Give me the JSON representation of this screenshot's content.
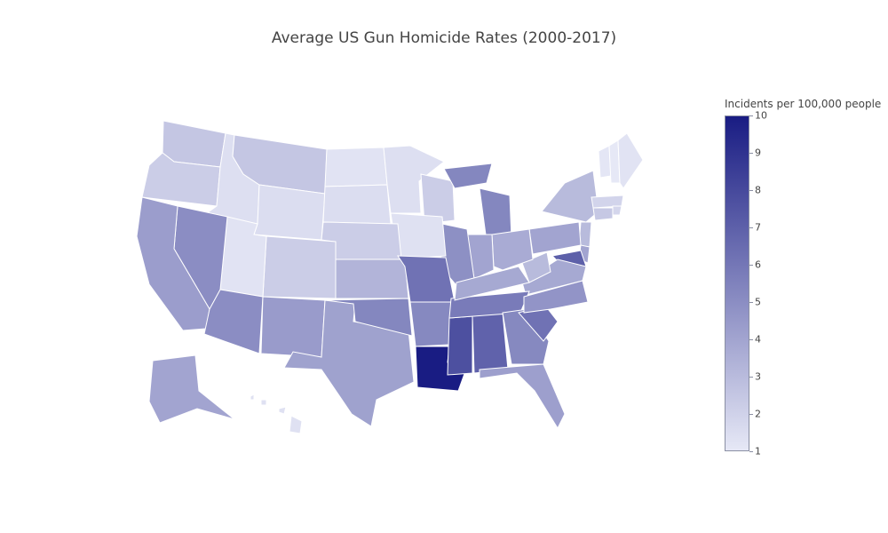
{
  "title": "Average US Gun Homicide Rates (2000-2017)",
  "colorbar": {
    "title": "Incidents per 100,000 people",
    "min": 1,
    "max": 10,
    "ticks": [
      "10",
      "9",
      "8",
      "7",
      "6",
      "5",
      "4",
      "3",
      "2",
      "1"
    ],
    "color_low": "#e6e8f6",
    "color_high": "#191c83"
  },
  "chart_data": {
    "type": "choropleth",
    "scope": "usa",
    "value_label": "Incidents per 100,000 people",
    "states": [
      {
        "code": "WA",
        "value": 2.5
      },
      {
        "code": "OR",
        "value": 2.2
      },
      {
        "code": "ID",
        "value": 1.4
      },
      {
        "code": "MT",
        "value": 2.5
      },
      {
        "code": "WY",
        "value": 1.5
      },
      {
        "code": "ND",
        "value": 1.2
      },
      {
        "code": "SD",
        "value": 1.5
      },
      {
        "code": "MN",
        "value": 1.4
      },
      {
        "code": "WI",
        "value": 2.2
      },
      {
        "code": "MI",
        "value": 5.3
      },
      {
        "code": "NY",
        "value": 3.0
      },
      {
        "code": "VT",
        "value": 1.1
      },
      {
        "code": "NH",
        "value": 1.0
      },
      {
        "code": "ME",
        "value": 1.2
      },
      {
        "code": "MA",
        "value": 1.9
      },
      {
        "code": "RI",
        "value": 1.8
      },
      {
        "code": "CT",
        "value": 2.4
      },
      {
        "code": "NJ",
        "value": 3.0
      },
      {
        "code": "PA",
        "value": 4.0
      },
      {
        "code": "DE",
        "value": 4.0
      },
      {
        "code": "MD",
        "value": 7.0
      },
      {
        "code": "VA",
        "value": 3.8
      },
      {
        "code": "WV",
        "value": 3.0
      },
      {
        "code": "OH",
        "value": 3.7
      },
      {
        "code": "IN",
        "value": 4.0
      },
      {
        "code": "IL",
        "value": 4.9
      },
      {
        "code": "IA",
        "value": 1.3
      },
      {
        "code": "NE",
        "value": 2.2
      },
      {
        "code": "KS",
        "value": 3.3
      },
      {
        "code": "CO",
        "value": 2.2
      },
      {
        "code": "UT",
        "value": 1.2
      },
      {
        "code": "NV",
        "value": 5.0
      },
      {
        "code": "CA",
        "value": 4.3
      },
      {
        "code": "AZ",
        "value": 5.0
      },
      {
        "code": "NM",
        "value": 4.4
      },
      {
        "code": "TX",
        "value": 4.1
      },
      {
        "code": "OK",
        "value": 5.3
      },
      {
        "code": "MO",
        "value": 6.2
      },
      {
        "code": "AR",
        "value": 5.2
      },
      {
        "code": "LA",
        "value": 10.0
      },
      {
        "code": "MS",
        "value": 7.7
      },
      {
        "code": "AL",
        "value": 6.9
      },
      {
        "code": "TN",
        "value": 5.8
      },
      {
        "code": "KY",
        "value": 3.8
      },
      {
        "code": "GA",
        "value": 5.2
      },
      {
        "code": "FL",
        "value": 4.2
      },
      {
        "code": "SC",
        "value": 6.2
      },
      {
        "code": "NC",
        "value": 4.7
      },
      {
        "code": "AK",
        "value": 4.0
      },
      {
        "code": "HI",
        "value": 1.3
      }
    ]
  }
}
